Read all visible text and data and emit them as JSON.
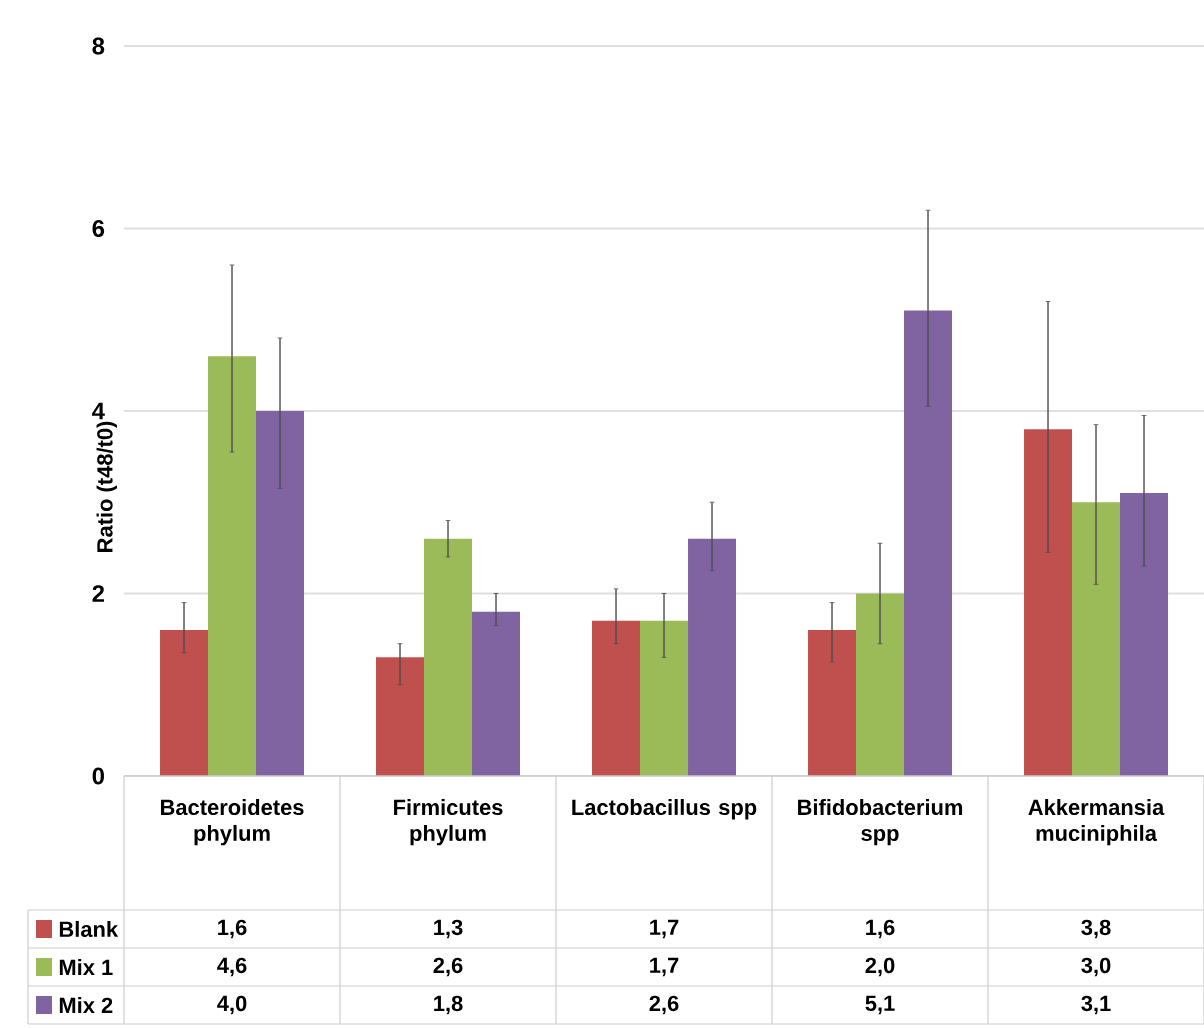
{
  "chart_data": {
    "type": "bar",
    "ylabel": "Ratio (t48/t0)",
    "categories": [
      "Bacteroidetes phylum",
      "Firmicutes phylum",
      "Lactobacillus spp",
      "Bifidobacterium spp",
      "Akkermansia muciniphila"
    ],
    "ylim": [
      0,
      8
    ],
    "yticks": [
      0,
      2,
      4,
      6,
      8
    ],
    "grid": "y",
    "legend": "bottom left",
    "series": [
      {
        "name": "Blank",
        "color": "#c0504d",
        "values": [
          1.6,
          1.3,
          1.7,
          1.6,
          3.8
        ],
        "value_labels": [
          "1,6",
          "1,3",
          "1,7",
          "1,6",
          "3,8"
        ],
        "errors": [
          [
            1.35,
            1.9
          ],
          [
            1.0,
            1.45
          ],
          [
            1.45,
            2.05
          ],
          [
            1.25,
            1.9
          ],
          [
            2.45,
            5.2
          ]
        ]
      },
      {
        "name": "Mix 1",
        "color": "#9bbb59",
        "values": [
          4.6,
          2.6,
          1.7,
          2.0,
          3.0
        ],
        "value_labels": [
          "4,6",
          "2,6",
          "1,7",
          "2,0",
          "3,0"
        ],
        "errors": [
          [
            3.55,
            5.6
          ],
          [
            2.4,
            2.8
          ],
          [
            1.3,
            2.0
          ],
          [
            1.45,
            2.55
          ],
          [
            2.1,
            3.85
          ]
        ]
      },
      {
        "name": "Mix 2",
        "color": "#8064a2",
        "values": [
          4.0,
          1.8,
          2.6,
          5.1,
          3.1
        ],
        "value_labels": [
          "4,0",
          "1,8",
          "2,6",
          "5,1",
          "3,1"
        ],
        "errors": [
          [
            3.15,
            4.8
          ],
          [
            1.65,
            2.0
          ],
          [
            2.25,
            3.0
          ],
          [
            4.05,
            6.2
          ],
          [
            2.3,
            3.95
          ]
        ]
      }
    ]
  }
}
